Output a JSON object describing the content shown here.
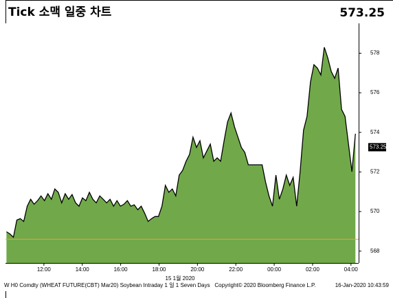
{
  "chart_data": {
    "type": "area",
    "title": "Tick 소맥 일중 차트",
    "last_price": 573.25,
    "date_label": "15 1월 2020",
    "footer_left": "W H0 Comdty (WHEAT FUTURE(CBT) Mar20) Soybean Intraday 1 일 1 Seven Days",
    "footer_center": "Copyright© 2020 Bloomberg Finance L.P.",
    "footer_right": "16-Jan-2020 10:43:59",
    "color": "#71a94a",
    "line_color": "#000000",
    "reference_line": 568.6,
    "reference_color": "#e8a33a",
    "xlim": [
      10,
      28.4
    ],
    "ylim": [
      567.4,
      579.3
    ],
    "xticks": [
      {
        "value": 12,
        "label": "12:00"
      },
      {
        "value": 14,
        "label": "14:00"
      },
      {
        "value": 16,
        "label": "16:00"
      },
      {
        "value": 18,
        "label": "18:00"
      },
      {
        "value": 20,
        "label": "20:00"
      },
      {
        "value": 22,
        "label": "22:00"
      },
      {
        "value": 24,
        "label": "00:00"
      },
      {
        "value": 26,
        "label": "02:00"
      },
      {
        "value": 28,
        "label": "04:00"
      }
    ],
    "yticks": [
      568,
      570,
      572,
      574,
      576,
      578
    ],
    "x": [
      10.05,
      10.23,
      10.41,
      10.59,
      10.77,
      10.95,
      11.13,
      11.31,
      11.49,
      11.67,
      11.85,
      12.03,
      12.21,
      12.39,
      12.57,
      12.75,
      12.93,
      13.11,
      13.29,
      13.47,
      13.65,
      13.83,
      14.01,
      14.19,
      14.37,
      14.55,
      14.73,
      14.91,
      15.09,
      15.27,
      15.45,
      15.63,
      15.81,
      15.99,
      16.17,
      16.35,
      16.53,
      16.71,
      16.89,
      17.07,
      17.25,
      17.43,
      17.61,
      17.79,
      17.97,
      18.15,
      18.33,
      18.51,
      18.69,
      18.87,
      19.05,
      19.23,
      19.41,
      19.59,
      19.77,
      19.95,
      20.13,
      20.31,
      20.49,
      20.67,
      20.85,
      21.03,
      21.21,
      21.39,
      21.57,
      21.75,
      21.93,
      22.11,
      22.29,
      22.47,
      22.65,
      22.83,
      23.01,
      23.19,
      23.37,
      23.55,
      23.73,
      23.91,
      24.09,
      24.27,
      24.45,
      24.63,
      24.81,
      24.99,
      25.17,
      25.35,
      25.53,
      25.71,
      25.89,
      26.07,
      26.25,
      26.43,
      26.61,
      26.79,
      26.97,
      27.15,
      27.33,
      27.51,
      27.69,
      27.87,
      28.05,
      28.23
    ],
    "values": [
      568.98,
      568.87,
      568.7,
      569.57,
      569.64,
      569.5,
      570.27,
      570.62,
      570.37,
      570.55,
      570.79,
      570.55,
      570.9,
      570.62,
      571.14,
      570.97,
      570.44,
      570.9,
      570.62,
      570.86,
      570.44,
      570.27,
      570.69,
      570.55,
      570.97,
      570.62,
      570.44,
      570.79,
      570.62,
      570.44,
      570.62,
      570.27,
      570.55,
      570.27,
      570.37,
      570.55,
      570.27,
      570.34,
      570.09,
      570.27,
      569.92,
      569.5,
      569.64,
      569.75,
      569.75,
      570.27,
      571.32,
      570.97,
      571.14,
      570.79,
      571.84,
      572.08,
      572.54,
      572.89,
      573.76,
      573.24,
      573.58,
      572.71,
      573.06,
      573.41,
      572.54,
      572.71,
      572.54,
      573.58,
      574.53,
      574.98,
      574.28,
      573.76,
      573.24,
      572.99,
      572.36,
      572.36,
      572.36,
      572.36,
      572.36,
      571.49,
      570.79,
      570.27,
      571.84,
      570.62,
      571.14,
      571.84,
      571.32,
      571.73,
      570.27,
      572.01,
      574.11,
      574.81,
      576.55,
      577.42,
      577.25,
      576.9,
      578.3,
      577.77,
      577.08,
      576.73,
      577.25,
      575.16,
      574.81,
      573.41,
      572.01,
      573.93
    ]
  }
}
